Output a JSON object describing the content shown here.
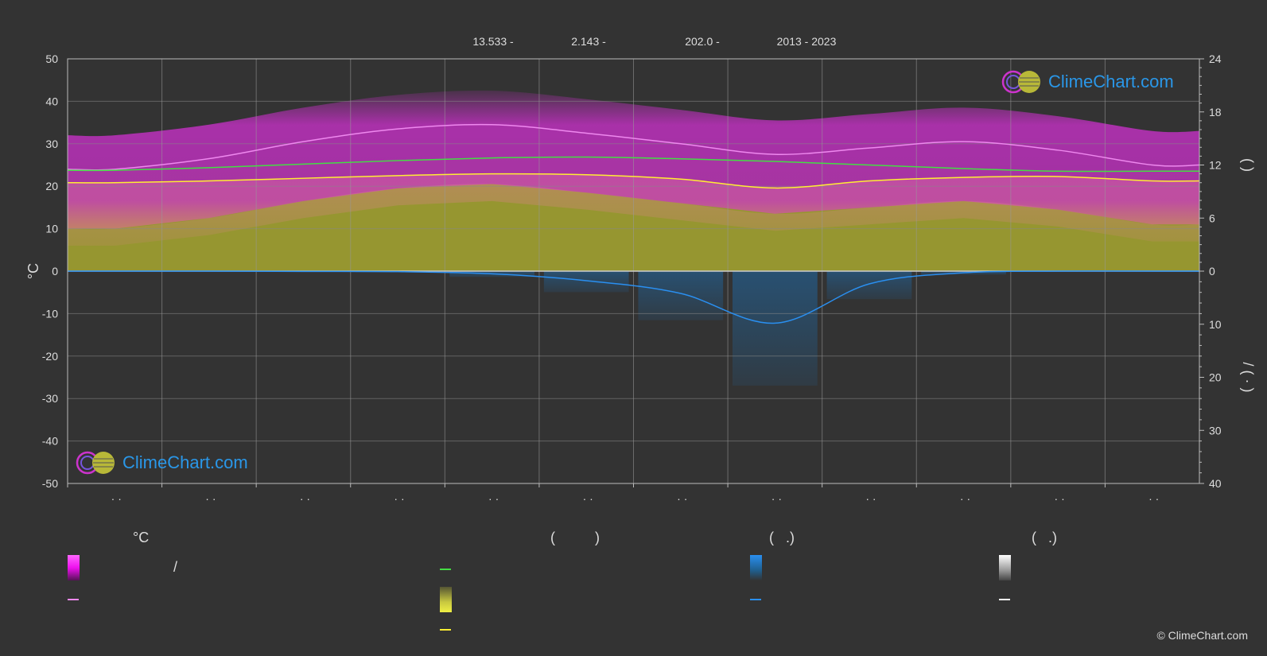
{
  "header": {
    "items": [
      "13.533 -",
      "2.143 -",
      "202.0 -",
      "2013 - 2023"
    ]
  },
  "chart_data": {
    "type": "area",
    "ylabel": "°C",
    "ylim": [
      -50,
      50
    ],
    "yticks": [
      50,
      40,
      30,
      20,
      10,
      0,
      -10,
      -20,
      -30,
      -40,
      -50
    ],
    "right_upper_ticks": [
      24,
      18,
      12,
      6,
      0
    ],
    "right_lower_ticks": [
      10,
      20,
      30,
      40
    ],
    "right_upper_label": "(   )",
    "right_lower_label": "/      (  ·  )",
    "x_tick_labels": [
      "· ·",
      "· ·",
      "· ·",
      "· ·",
      "· ·",
      "· ·",
      "· ·",
      "· ·",
      "· ·",
      "· ·",
      "· ·",
      "· ·"
    ],
    "months": 12,
    "series": [
      {
        "name": "max_temp_mean",
        "color": "#ee88ee",
        "values": [
          24.0,
          26.5,
          30.5,
          33.5,
          34.5,
          32.5,
          30.0,
          27.5,
          29.0,
          30.5,
          28.5,
          25.0
        ]
      },
      {
        "name": "daylight_hours",
        "color": "#44dd44",
        "axis": "right_upper",
        "values": [
          11.4,
          11.7,
          12.1,
          12.5,
          12.8,
          12.9,
          12.7,
          12.4,
          12.0,
          11.6,
          11.3,
          11.3
        ]
      },
      {
        "name": "sunshine_hours",
        "color": "#ffee33",
        "axis": "right_upper",
        "values": [
          10.0,
          10.2,
          10.5,
          10.8,
          11.0,
          10.9,
          10.4,
          9.4,
          10.2,
          10.6,
          10.7,
          10.2
        ]
      },
      {
        "name": "precipitation_mm_day",
        "color": "#2a8ff0",
        "axis": "right_lower",
        "values": [
          0.0,
          0.0,
          0.05,
          0.1,
          0.5,
          1.8,
          4.2,
          9.8,
          2.4,
          0.3,
          0.0,
          0.0
        ]
      }
    ],
    "bands": {
      "temp_range_color": "#d030d0",
      "sunshine_fill_color": "#a8a830",
      "precip_fill_color": "#1f5f8f"
    }
  },
  "legend": {
    "col1": {
      "title": "°C",
      "row1": "/"
    },
    "col2": {
      "title": "(          )"
    },
    "col3": {
      "title": "(   .)"
    },
    "col4": {
      "title": "(   .)"
    }
  },
  "logo_text": "ClimeChart.com",
  "copyright": "© ClimeChart.com"
}
